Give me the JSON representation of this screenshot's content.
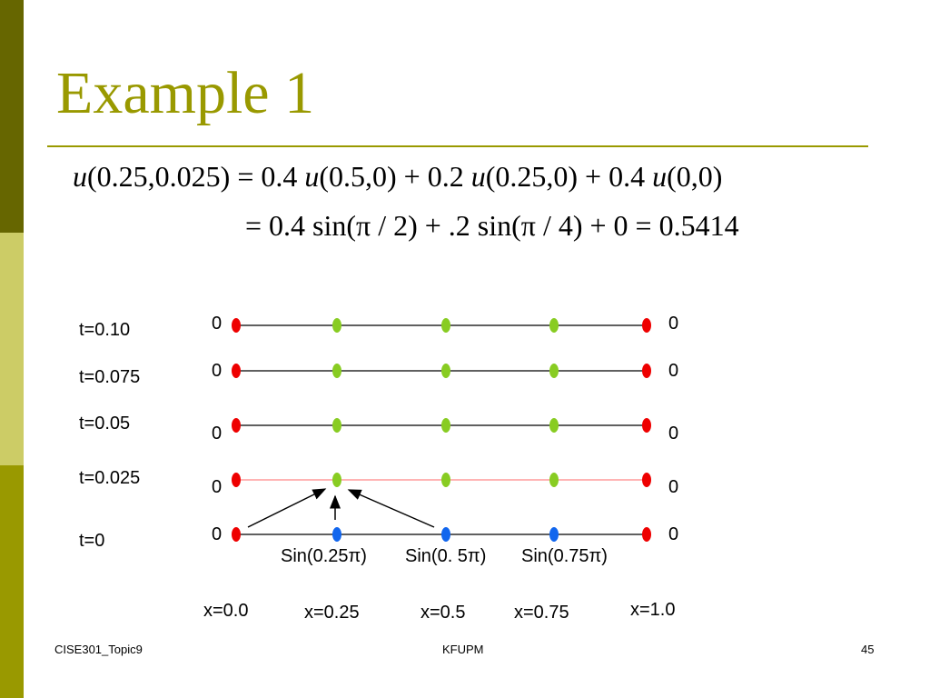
{
  "slide": {
    "title": "Example 1",
    "colors": {
      "accent": "#999900",
      "bar_dark": "#666600",
      "bar_light": "#cccc66"
    }
  },
  "equation": {
    "line1": {
      "lhs_u": "u",
      "lhs_args": "(0.25,0.025) = 0.4 ",
      "t1_u": "u",
      "t1_args": "(0.5,0) + 0.2 ",
      "t2_u": "u",
      "t2_args": "(0.25,0) + 0.4 ",
      "t3_u": "u",
      "t3_args": "(0,0)"
    },
    "line2": "= 0.4 sin(π / 2) + .2 sin(π / 4) + 0 = 0.5414"
  },
  "grid": {
    "time_labels": [
      "t=0.10",
      "t=0.075",
      "t=0.05",
      "t=0.025",
      "t=0"
    ],
    "x_labels": [
      "x=0.0",
      "x=0.25",
      "x=0.5",
      "x=0.75",
      "x=1.0"
    ],
    "boundary_value": "0",
    "initial_values": [
      "Sin(0.25π)",
      "Sin(0. 5π)",
      "Sin(0.75π)"
    ],
    "node_colors": {
      "boundary": "red",
      "interior": "green",
      "initial": "blue"
    },
    "highlighted_row": "t=0.025"
  },
  "footer": {
    "left": "CISE301_Topic9",
    "center": "KFUPM",
    "right": "45"
  }
}
